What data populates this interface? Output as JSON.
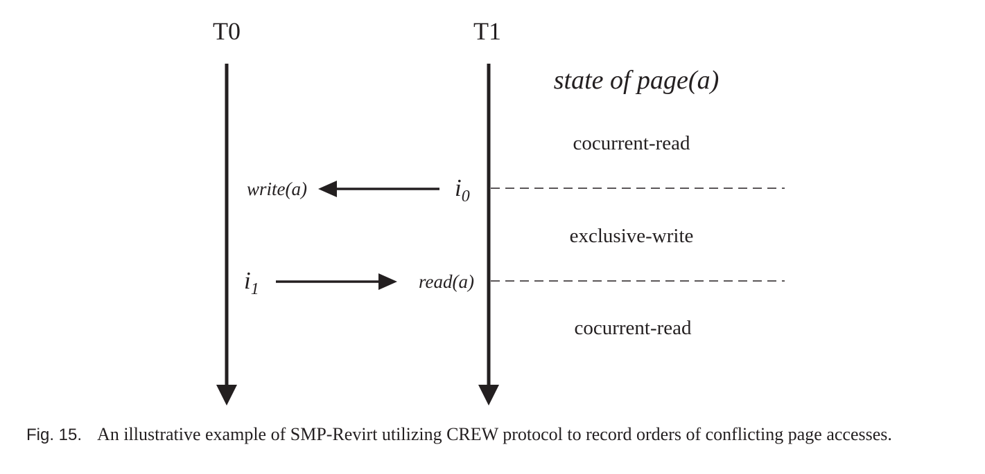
{
  "threads": {
    "t0": "T0",
    "t1": "T1"
  },
  "state_heading": "state of page(a)",
  "states": {
    "first": "cocurrent-read",
    "second": "exclusive-write",
    "third": "cocurrent-read"
  },
  "events": {
    "write_op": "write(a)",
    "read_op": "read(a)",
    "i0_base": "i",
    "i0_sub": "0",
    "i1_base": "i",
    "i1_sub": "1"
  },
  "caption": {
    "number": "Fig. 15.",
    "text": "An illustrative example of SMP-Revirt utilizing CREW protocol to record orders of conflicting page accesses."
  },
  "colors": {
    "ink": "#231f20"
  }
}
